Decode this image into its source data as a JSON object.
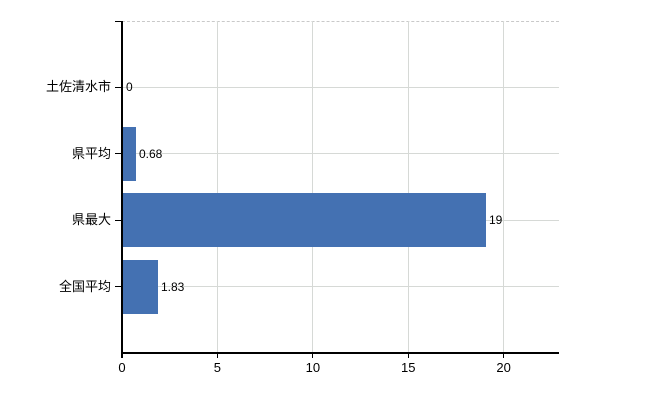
{
  "chart_data": {
    "type": "bar",
    "orientation": "horizontal",
    "title": "",
    "xlabel": "",
    "ylabel": "",
    "categories": [
      "土佐清水市",
      "県平均",
      "県最大",
      "全国平均"
    ],
    "values": [
      0,
      0.68,
      19,
      1.83
    ],
    "data_labels": [
      "0",
      "0.68",
      "19",
      "1.83"
    ],
    "xticks": [
      0,
      5,
      10,
      15,
      20
    ],
    "xtick_labels": [
      "0",
      "5",
      "10",
      "15",
      "20"
    ],
    "xlim": [
      0,
      22.9
    ],
    "grid": true,
    "legend": false,
    "colors": {
      "bar": "#4471b2",
      "gridline": "#d6d9d6",
      "axis": "#000000",
      "plot_border_top": "#c9c9c9",
      "text": "#000000",
      "background": "#ffffff"
    }
  }
}
